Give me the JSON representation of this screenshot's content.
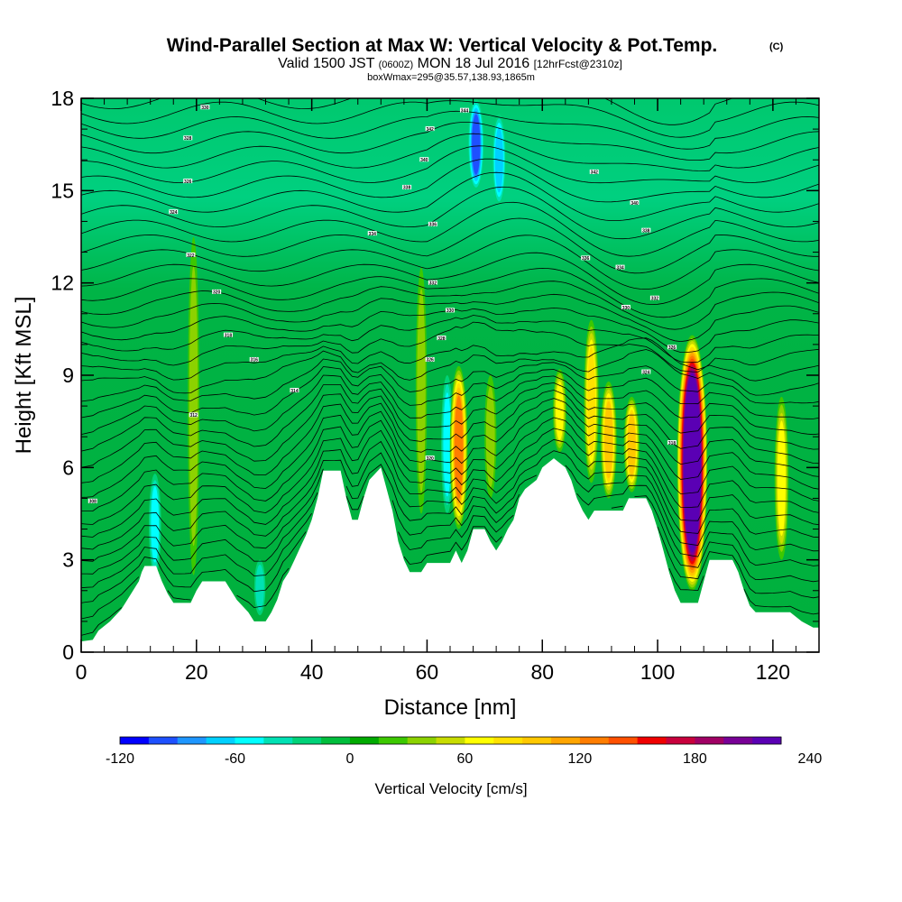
{
  "title": {
    "main": "Wind-Parallel Section at Max W: Vertical Velocity & Pot.Temp.",
    "copyright": "(C)",
    "valid_prefix": "Valid 1500 JST",
    "valid_utc": "(0600Z)",
    "valid_date": "MON 18 Jul 2016",
    "forecast": "[12hrFcst@2310z]",
    "boxmax": "boxWmax=295@35.57,138.93,1865m"
  },
  "chart_data": {
    "type": "heatmap",
    "xlabel": "Distance [nm]",
    "ylabel": "Height [Kft MSL]",
    "xlim": [
      0,
      128
    ],
    "ylim": [
      0,
      18
    ],
    "x_ticks": [
      "0",
      "20",
      "40",
      "60",
      "80",
      "100",
      "120"
    ],
    "y_ticks": [
      "0",
      "3",
      "6",
      "9",
      "12",
      "15",
      "18"
    ],
    "terrain_kft": [
      [
        0,
        0.35
      ],
      [
        2,
        0.4
      ],
      [
        3,
        0.7
      ],
      [
        5,
        1.0
      ],
      [
        7,
        1.4
      ],
      [
        8,
        1.7
      ],
      [
        9,
        2.0
      ],
      [
        10,
        2.3
      ],
      [
        10.5,
        2.6
      ],
      [
        11,
        2.8
      ],
      [
        13,
        2.8
      ],
      [
        14,
        2.3
      ],
      [
        15,
        1.9
      ],
      [
        16,
        1.6
      ],
      [
        19,
        1.6
      ],
      [
        20,
        2.0
      ],
      [
        21,
        2.3
      ],
      [
        25,
        2.3
      ],
      [
        26,
        2.0
      ],
      [
        27,
        1.7
      ],
      [
        29,
        1.3
      ],
      [
        30,
        1.0
      ],
      [
        32,
        1.0
      ],
      [
        33,
        1.3
      ],
      [
        34,
        1.7
      ],
      [
        35,
        2.3
      ],
      [
        36,
        2.6
      ],
      [
        37,
        3.0
      ],
      [
        38,
        3.4
      ],
      [
        39,
        3.8
      ],
      [
        40,
        4.3
      ],
      [
        41,
        5.0
      ],
      [
        42,
        5.9
      ],
      [
        45,
        5.9
      ],
      [
        46,
        5.0
      ],
      [
        47,
        4.3
      ],
      [
        48,
        4.3
      ],
      [
        49,
        5.0
      ],
      [
        50,
        5.6
      ],
      [
        52,
        6.0
      ],
      [
        53,
        5.3
      ],
      [
        54,
        4.6
      ],
      [
        55,
        3.6
      ],
      [
        56,
        3.0
      ],
      [
        57,
        2.6
      ],
      [
        59,
        2.6
      ],
      [
        60,
        2.9
      ],
      [
        64,
        2.9
      ],
      [
        65,
        3.3
      ],
      [
        66,
        2.9
      ],
      [
        67,
        3.3
      ],
      [
        68,
        4.0
      ],
      [
        70,
        4.0
      ],
      [
        71,
        3.6
      ],
      [
        72,
        3.3
      ],
      [
        73,
        3.6
      ],
      [
        74,
        4.0
      ],
      [
        75,
        4.3
      ],
      [
        76,
        5.0
      ],
      [
        77,
        5.3
      ],
      [
        79,
        5.6
      ],
      [
        80,
        6.0
      ],
      [
        82,
        6.3
      ],
      [
        84,
        6.0
      ],
      [
        85,
        5.6
      ],
      [
        86,
        5.0
      ],
      [
        87,
        4.6
      ],
      [
        88,
        4.3
      ],
      [
        89,
        4.6
      ],
      [
        90,
        4.6
      ],
      [
        94,
        4.6
      ],
      [
        95,
        5.0
      ],
      [
        98,
        5.0
      ],
      [
        99,
        4.6
      ],
      [
        100,
        4.0
      ],
      [
        101,
        3.3
      ],
      [
        102,
        2.6
      ],
      [
        103,
        2.0
      ],
      [
        104,
        1.6
      ],
      [
        107,
        1.6
      ],
      [
        108,
        2.3
      ],
      [
        109,
        3.0
      ],
      [
        113,
        3.0
      ],
      [
        114,
        2.6
      ],
      [
        115,
        2.0
      ],
      [
        116,
        1.5
      ],
      [
        117,
        1.3
      ],
      [
        123,
        1.3
      ],
      [
        125,
        1.0
      ],
      [
        127,
        0.8
      ],
      [
        128,
        0.8
      ]
    ],
    "updraft_cores": [
      {
        "x": 65.5,
        "ybottom": 4.0,
        "ytop": 9.3,
        "max_cm_s": 120
      },
      {
        "x": 71.0,
        "ybottom": 5.0,
        "ytop": 9.0,
        "max_cm_s": 40
      },
      {
        "x": 83.0,
        "ybottom": 6.5,
        "ytop": 9.2,
        "max_cm_s": 60
      },
      {
        "x": 88.5,
        "ybottom": 5.5,
        "ytop": 10.8,
        "max_cm_s": 80
      },
      {
        "x": 91.5,
        "ybottom": 5.0,
        "ytop": 8.8,
        "max_cm_s": 100
      },
      {
        "x": 95.5,
        "ybottom": 5.2,
        "ytop": 8.3,
        "max_cm_s": 90
      },
      {
        "x": 106.0,
        "ybottom": 2.0,
        "ytop": 10.3,
        "max_cm_s": 295
      },
      {
        "x": 121.5,
        "ybottom": 3.0,
        "ytop": 8.3,
        "max_cm_s": 70
      },
      {
        "x": 19.5,
        "ybottom": 2.5,
        "ytop": 13.5,
        "max_cm_s": 35
      },
      {
        "x": 59.0,
        "ybottom": 4.5,
        "ytop": 12.5,
        "max_cm_s": 30
      }
    ],
    "downdraft_cores": [
      {
        "x": 68.5,
        "ybottom": 15.0,
        "ytop": 18.0,
        "min_cm_s": -100
      },
      {
        "x": 72.5,
        "ybottom": 14.5,
        "ytop": 17.5,
        "min_cm_s": -70
      },
      {
        "x": 12.8,
        "ybottom": 2.5,
        "ytop": 5.8,
        "min_cm_s": -45
      },
      {
        "x": 63.5,
        "ybottom": 4.5,
        "ytop": 9.0,
        "min_cm_s": -45
      },
      {
        "x": 31.0,
        "ybottom": 1.2,
        "ytop": 3.0,
        "min_cm_s": -30
      }
    ],
    "theta_contour_labels": [
      {
        "x": 21.5,
        "y": 17.7,
        "text": "330"
      },
      {
        "x": 18.5,
        "y": 16.7,
        "text": "328"
      },
      {
        "x": 18.5,
        "y": 15.3,
        "text": "326"
      },
      {
        "x": 16.0,
        "y": 14.3,
        "text": "324"
      },
      {
        "x": 19.0,
        "y": 12.9,
        "text": "322"
      },
      {
        "x": 23.5,
        "y": 11.7,
        "text": "320"
      },
      {
        "x": 25.5,
        "y": 10.3,
        "text": "318"
      },
      {
        "x": 30.0,
        "y": 9.5,
        "text": "316"
      },
      {
        "x": 37.0,
        "y": 8.5,
        "text": "314"
      },
      {
        "x": 19.5,
        "y": 7.7,
        "text": "312"
      },
      {
        "x": 2.0,
        "y": 4.9,
        "text": "308"
      },
      {
        "x": 66.5,
        "y": 17.6,
        "text": "344"
      },
      {
        "x": 60.5,
        "y": 17.0,
        "text": "342"
      },
      {
        "x": 59.5,
        "y": 16.0,
        "text": "340"
      },
      {
        "x": 56.5,
        "y": 15.1,
        "text": "338"
      },
      {
        "x": 61.0,
        "y": 13.9,
        "text": "336"
      },
      {
        "x": 50.5,
        "y": 13.6,
        "text": "334"
      },
      {
        "x": 61.0,
        "y": 12.0,
        "text": "332"
      },
      {
        "x": 64.0,
        "y": 11.1,
        "text": "330"
      },
      {
        "x": 62.5,
        "y": 10.2,
        "text": "328"
      },
      {
        "x": 60.5,
        "y": 9.5,
        "text": "326"
      },
      {
        "x": 60.5,
        "y": 6.3,
        "text": "320"
      },
      {
        "x": 89.0,
        "y": 15.6,
        "text": "342"
      },
      {
        "x": 96.0,
        "y": 14.6,
        "text": "340"
      },
      {
        "x": 98.0,
        "y": 13.7,
        "text": "338"
      },
      {
        "x": 87.5,
        "y": 12.8,
        "text": "336"
      },
      {
        "x": 93.5,
        "y": 12.5,
        "text": "334"
      },
      {
        "x": 99.5,
        "y": 11.5,
        "text": "332"
      },
      {
        "x": 94.5,
        "y": 11.2,
        "text": "330"
      },
      {
        "x": 102.5,
        "y": 9.9,
        "text": "326"
      },
      {
        "x": 98.0,
        "y": 9.1,
        "text": "324"
      },
      {
        "x": 102.5,
        "y": 6.8,
        "text": "318"
      }
    ],
    "colorbar": {
      "label": "Vertical Velocity [cm/s]",
      "min": -120,
      "step": 15,
      "tick_labels": [
        "-120",
        "-60",
        "0",
        "60",
        "120",
        "180",
        "240"
      ],
      "colors": [
        "#0000ff",
        "#1e50ff",
        "#1e96ff",
        "#00d0ff",
        "#00ffff",
        "#00e1b4",
        "#00d278",
        "#00be3c",
        "#00aa00",
        "#3cc800",
        "#8cd200",
        "#c8dc00",
        "#ffff00",
        "#ffe100",
        "#ffc800",
        "#ffa500",
        "#ff7d00",
        "#ff5000",
        "#f00000",
        "#c8003c",
        "#a00064",
        "#780096",
        "#5a00b4"
      ]
    }
  }
}
